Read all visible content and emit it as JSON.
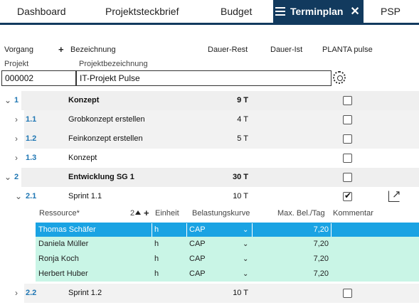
{
  "tabs": [
    {
      "label": "Dashboard",
      "active": false
    },
    {
      "label": "Projektsteckbrief",
      "active": false
    },
    {
      "label": "Budget",
      "active": false
    },
    {
      "label": "Terminplan",
      "active": true
    },
    {
      "label": "PSP",
      "active": false
    }
  ],
  "columns": {
    "vorgang": "Vorgang",
    "plus": "+",
    "bezeichnung": "Bezeichnung",
    "dauer_rest": "Dauer-Rest",
    "dauer_ist": "Dauer-Ist",
    "planta_pulse": "PLANTA pulse"
  },
  "project": {
    "projekt_label": "Projekt",
    "bezeichnung_label": "Projektbezeichnung",
    "projekt_value": "000002",
    "bezeichnung_value": "IT-Projekt Pulse"
  },
  "tasks": [
    {
      "num": "1",
      "name": "Konzept",
      "dur": "9 T",
      "expanded": true,
      "bold": true,
      "checked": false
    },
    {
      "num": "1.1",
      "name": "Grobkonzept erstellen",
      "dur": "4 T",
      "expanded": false,
      "bold": false,
      "checked": false
    },
    {
      "num": "1.2",
      "name": "Feinkonzept erstellen",
      "dur": "5 T",
      "expanded": false,
      "bold": false,
      "checked": false
    },
    {
      "num": "1.3",
      "name": "Konzept",
      "dur": "",
      "expanded": false,
      "bold": false,
      "checked": false
    },
    {
      "num": "2",
      "name": "Entwicklung SG 1",
      "dur": "30 T",
      "expanded": true,
      "bold": true,
      "checked": false
    },
    {
      "num": "2.1",
      "name": "Sprint 1.1",
      "dur": "10 T",
      "expanded": true,
      "bold": false,
      "checked": true
    },
    {
      "num": "2.2",
      "name": "Sprint 1.2",
      "dur": "10 T",
      "expanded": false,
      "bold": false,
      "checked": false
    }
  ],
  "resources_header": {
    "ressource": "Ressource*",
    "sort_num": "2",
    "plus": "+",
    "einheit": "Einheit",
    "belastungskurve": "Belastungskurve",
    "max_bel": "Max. Bel./Tag",
    "kommentar": "Kommentar"
  },
  "resources": [
    {
      "name": "Thomas Schäfer",
      "einheit": "h",
      "kurve": "CAP",
      "max": "7,20",
      "kommentar": "",
      "selected": true
    },
    {
      "name": "Daniela Müller",
      "einheit": "h",
      "kurve": "CAP",
      "max": "7,20",
      "kommentar": "",
      "selected": false
    },
    {
      "name": "Ronja Koch",
      "einheit": "h",
      "kurve": "CAP",
      "max": "7,20",
      "kommentar": "",
      "selected": false
    },
    {
      "name": "Herbert Huber",
      "einheit": "h",
      "kurve": "CAP",
      "max": "7,20",
      "kommentar": "",
      "selected": false
    }
  ],
  "colors": {
    "tab_active": "#123a5e",
    "link": "#2077b4",
    "selected_row": "#1aa3e3",
    "resource_row": "#c9f5e6"
  }
}
